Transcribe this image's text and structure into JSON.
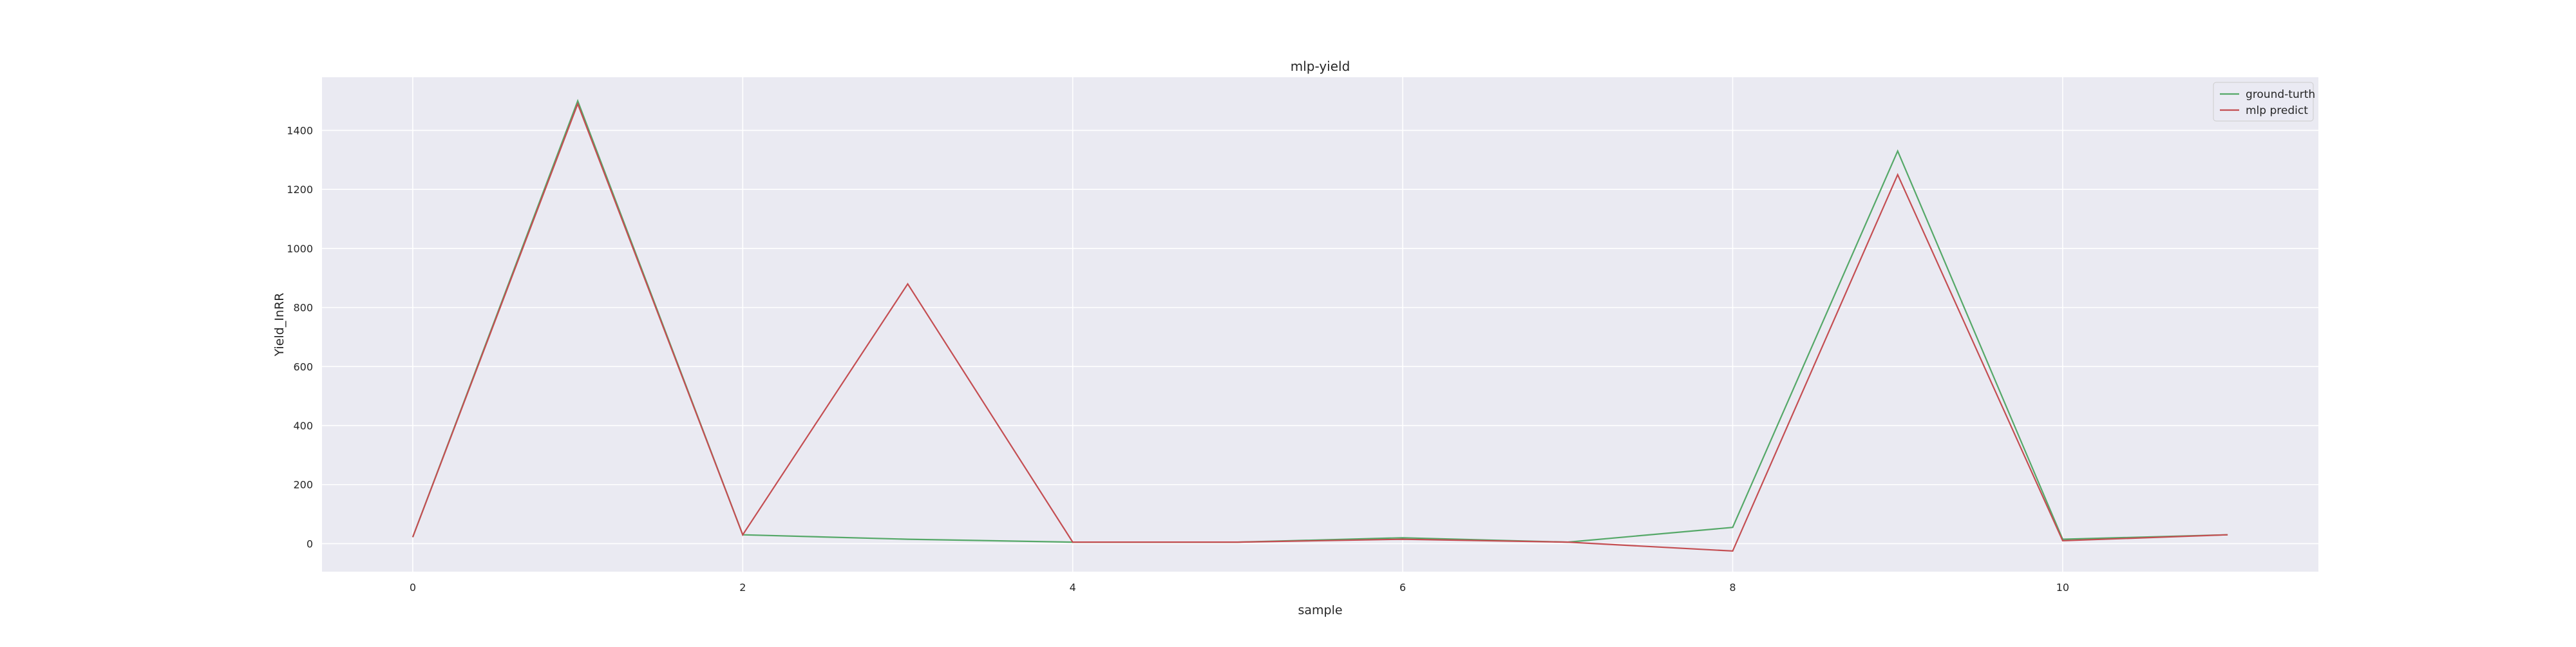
{
  "chart_data": {
    "type": "line",
    "title": "mlp-yield",
    "xlabel": "sample",
    "ylabel": "Yield_InRR",
    "x": [
      0,
      1,
      2,
      3,
      4,
      5,
      6,
      7,
      8,
      9,
      10,
      11
    ],
    "xlim": [
      -0.55,
      11.55
    ],
    "ylim": [
      -95,
      1580
    ],
    "xticks": [
      0,
      2,
      4,
      6,
      8,
      10
    ],
    "yticks": [
      0,
      200,
      400,
      600,
      800,
      1000,
      1200,
      1400
    ],
    "grid": true,
    "legend_position": "top-right",
    "background": "#eaeaf2",
    "series": [
      {
        "name": "ground-turth",
        "color": "#55a868",
        "values": [
          22,
          1500,
          30,
          15,
          5,
          5,
          20,
          5,
          55,
          1330,
          15,
          30
        ]
      },
      {
        "name": "mlp predict",
        "color": "#c44e52",
        "values": [
          22,
          1490,
          30,
          880,
          5,
          5,
          15,
          5,
          -25,
          1250,
          10,
          30
        ]
      }
    ]
  }
}
